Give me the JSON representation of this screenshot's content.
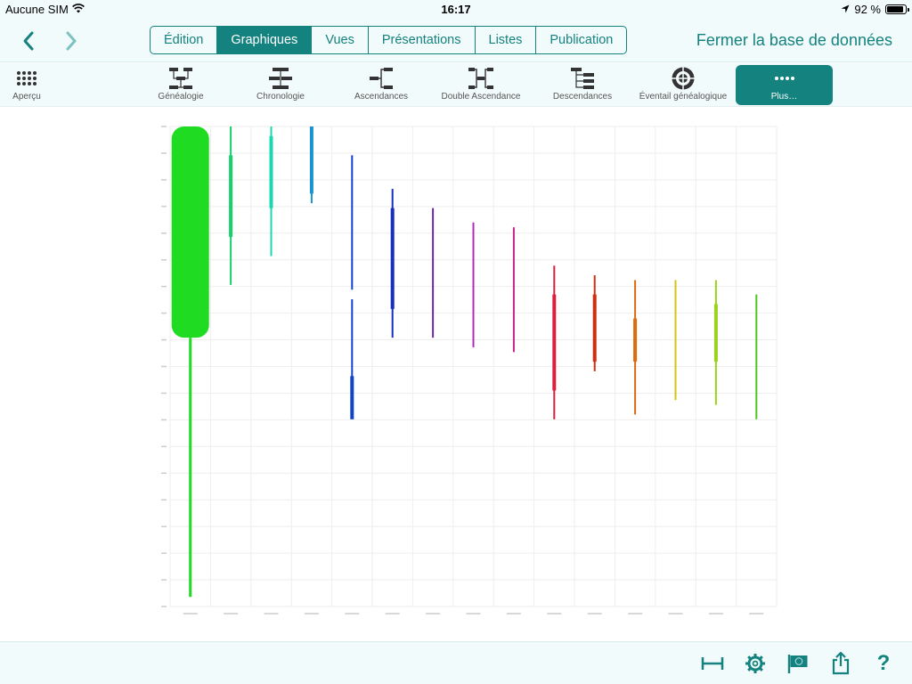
{
  "status_bar": {
    "carrier": "Aucune SIM",
    "time": "16:17",
    "battery": "92 %",
    "battery_level": 0.92
  },
  "nav": {
    "back_icon": "chevron-left-icon",
    "forward_icon": "chevron-right-icon",
    "tabs": [
      {
        "label": "Édition",
        "active": false
      },
      {
        "label": "Graphiques",
        "active": true
      },
      {
        "label": "Vues",
        "active": false
      },
      {
        "label": "Présentations",
        "active": false
      },
      {
        "label": "Listes",
        "active": false
      },
      {
        "label": "Publication",
        "active": false
      }
    ],
    "close_label": "Fermer la base de données"
  },
  "toolbar": {
    "items": [
      {
        "label": "Aperçu",
        "icon": "grid-dots-icon"
      },
      {
        "label": "Généalogie",
        "icon": "genealogy-icon"
      },
      {
        "label": "Chronologie",
        "icon": "chronology-icon"
      },
      {
        "label": "Ascendances",
        "icon": "ancestors-icon"
      },
      {
        "label": "Double Ascendance",
        "icon": "double-ancestry-icon"
      },
      {
        "label": "Descendances",
        "icon": "descendants-icon"
      },
      {
        "label": "Éventail généalogique",
        "icon": "fan-chart-icon"
      },
      {
        "label": "Plus…",
        "icon": "more-dots-icon"
      }
    ]
  },
  "colors": {
    "accent": "#14827e",
    "bar_background": "#f2fbfb"
  },
  "chart_data": {
    "type": "bar",
    "note_axis": "y axis tick labels and x category labels are rendered too small to be legible in the screenshot",
    "y_ticks_count": 19,
    "series": [
      {
        "color": "#1fdc22",
        "segments": [
          [
            0.0,
            0.44,
            "wide"
          ],
          [
            0.44,
            0.98,
            "thin"
          ]
        ]
      },
      {
        "color": "#17d26c",
        "segments": [
          [
            0.0,
            0.33,
            "thin"
          ],
          [
            0.06,
            0.23,
            "medium"
          ]
        ]
      },
      {
        "color": "#1ad8b0",
        "segments": [
          [
            0.0,
            0.27,
            "thin"
          ],
          [
            0.02,
            0.17,
            "medium"
          ]
        ]
      },
      {
        "color": "#1a94cf",
        "segments": [
          [
            0.0,
            0.16,
            "thin"
          ],
          [
            0.0,
            0.14,
            "medium"
          ]
        ]
      },
      {
        "color": "#1144cc",
        "segments": [
          [
            0.06,
            0.34,
            "thin"
          ],
          [
            0.36,
            0.6,
            "thin"
          ],
          [
            0.52,
            0.61,
            "medium"
          ]
        ]
      },
      {
        "color": "#1530c0",
        "segments": [
          [
            0.13,
            0.44,
            "thin"
          ],
          [
            0.17,
            0.38,
            "medium"
          ]
        ]
      },
      {
        "color": "#7026b5",
        "segments": [
          [
            0.17,
            0.44,
            "thin"
          ]
        ]
      },
      {
        "color": "#b42ac0",
        "segments": [
          [
            0.2,
            0.46,
            "thin"
          ]
        ]
      },
      {
        "color": "#c9218a",
        "segments": [
          [
            0.21,
            0.47,
            "thin"
          ]
        ]
      },
      {
        "color": "#d9203f",
        "segments": [
          [
            0.29,
            0.61,
            "thin"
          ],
          [
            0.35,
            0.55,
            "medium"
          ]
        ]
      },
      {
        "color": "#cf2d12",
        "segments": [
          [
            0.31,
            0.51,
            "thin"
          ],
          [
            0.35,
            0.49,
            "medium"
          ]
        ]
      },
      {
        "color": "#dd6a0d",
        "segments": [
          [
            0.32,
            0.6,
            "thin"
          ],
          [
            0.4,
            0.49,
            "medium"
          ]
        ]
      },
      {
        "color": "#d3c511",
        "segments": [
          [
            0.32,
            0.57,
            "thin"
          ]
        ]
      },
      {
        "color": "#9ad21c",
        "segments": [
          [
            0.32,
            0.58,
            "thin"
          ],
          [
            0.37,
            0.49,
            "medium"
          ]
        ]
      },
      {
        "color": "#4cc81c",
        "segments": [
          [
            0.35,
            0.61,
            "thin"
          ]
        ]
      }
    ]
  },
  "bottom_bar": {
    "icons": [
      "ruler-width-icon",
      "gear-icon",
      "flag-icon",
      "share-icon",
      "help-icon"
    ],
    "help_label": "?"
  }
}
